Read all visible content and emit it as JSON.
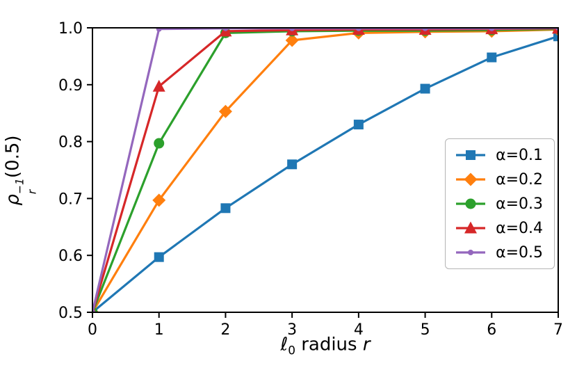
{
  "chart_data": {
    "type": "line",
    "x": [
      0,
      1,
      2,
      3,
      4,
      5,
      6,
      7
    ],
    "xticks": [
      "0",
      "1",
      "2",
      "3",
      "4",
      "5",
      "6",
      "7"
    ],
    "yticks": [
      "0.5",
      "0.6",
      "0.7",
      "0.8",
      "0.9",
      "1.0"
    ],
    "xlim": [
      0,
      7
    ],
    "ylim": [
      0.5,
      1.0
    ],
    "xlabel_plain": "ℓ0 radius r",
    "ylabel_plain": "ρ_r^(−1)(0.5)",
    "grid": false,
    "legend_position": "inside center-right",
    "series": [
      {
        "label": "α=0.1",
        "color": "#1f77b4",
        "marker": "square",
        "values": [
          0.5,
          0.597,
          0.683,
          0.76,
          0.83,
          0.893,
          0.948,
          0.985
        ]
      },
      {
        "label": "α=0.2",
        "color": "#ff7f0e",
        "marker": "diamond",
        "values": [
          0.5,
          0.697,
          0.853,
          0.978,
          0.991,
          0.993,
          0.994,
          0.997
        ]
      },
      {
        "label": "α=0.3",
        "color": "#2ca02c",
        "marker": "circle",
        "values": [
          0.5,
          0.797,
          0.991,
          0.994,
          0.995,
          0.995,
          0.996,
          0.998
        ]
      },
      {
        "label": "α=0.4",
        "color": "#d62728",
        "marker": "triangle",
        "values": [
          0.5,
          0.897,
          0.994,
          0.996,
          0.997,
          0.997,
          0.998,
          0.999
        ]
      },
      {
        "label": "α=0.5",
        "color": "#9467bd",
        "marker": "dot",
        "values": [
          0.5,
          0.998,
          0.999,
          0.999,
          0.999,
          0.999,
          0.999,
          1.0
        ]
      }
    ]
  },
  "axes": {
    "ylabel": {
      "rho": "ρ",
      "sup": "−1",
      "sub": "r",
      "arg": "(0.5)"
    },
    "xlabel": {
      "ell": "ℓ",
      "sub": "0",
      "text": "radius",
      "var": "r"
    }
  }
}
